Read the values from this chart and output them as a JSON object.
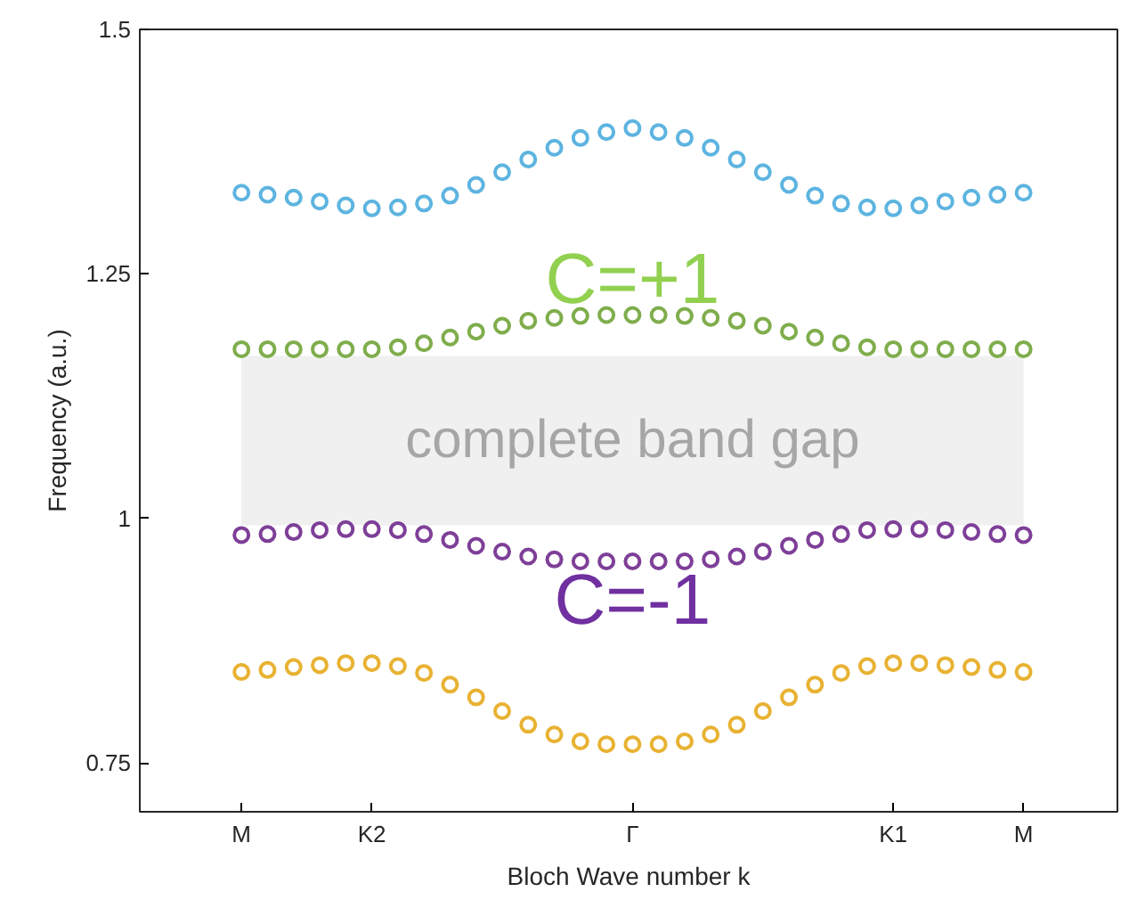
{
  "chart_data": {
    "type": "scatter",
    "xlabel": "Bloch Wave number k",
    "ylabel": "Frequency (a.u.)",
    "categories": [
      "M",
      null,
      null,
      null,
      null,
      "K2",
      null,
      null,
      null,
      null,
      null,
      null,
      null,
      null,
      null,
      "Γ",
      null,
      null,
      null,
      null,
      null,
      null,
      null,
      null,
      null,
      "K1",
      null,
      null,
      null,
      null,
      "M"
    ],
    "ylim": [
      0.7,
      1.5
    ],
    "yticks": [
      {
        "value": 0.75,
        "label": "0.75"
      },
      1,
      {
        "value": 1.25,
        "label": "1.25"
      },
      {
        "value": 1.5,
        "label": "1.5"
      }
    ],
    "marker": "circle",
    "grid": false,
    "series": [
      {
        "color": "#5db4e0",
        "values": [
          1.333,
          1.331,
          1.328,
          1.324,
          1.32,
          1.317,
          1.318,
          1.322,
          1.33,
          1.341,
          1.354,
          1.367,
          1.379,
          1.389,
          1.395,
          1.399,
          1.395,
          1.389,
          1.379,
          1.367,
          1.354,
          1.341,
          1.33,
          1.322,
          1.318,
          1.317,
          1.32,
          1.324,
          1.328,
          1.331,
          1.333
        ]
      },
      {
        "color": "#7fad4c",
        "values": [
          1.173,
          1.173,
          1.173,
          1.173,
          1.173,
          1.173,
          1.175,
          1.179,
          1.185,
          1.191,
          1.197,
          1.202,
          1.205,
          1.207,
          1.208,
          1.208,
          1.208,
          1.207,
          1.205,
          1.202,
          1.197,
          1.191,
          1.185,
          1.179,
          1.175,
          1.173,
          1.173,
          1.173,
          1.173,
          1.173,
          1.173
        ]
      },
      {
        "color": "#7e3f98",
        "values": [
          0.983,
          0.984,
          0.986,
          0.988,
          0.989,
          0.989,
          0.988,
          0.984,
          0.978,
          0.972,
          0.966,
          0.961,
          0.958,
          0.956,
          0.956,
          0.956,
          0.956,
          0.956,
          0.958,
          0.961,
          0.966,
          0.972,
          0.978,
          0.984,
          0.988,
          0.989,
          0.989,
          0.988,
          0.986,
          0.984,
          0.983
        ]
      },
      {
        "color": "#e8b232",
        "values": [
          0.843,
          0.845,
          0.848,
          0.85,
          0.852,
          0.852,
          0.849,
          0.842,
          0.83,
          0.817,
          0.803,
          0.789,
          0.779,
          0.772,
          0.769,
          0.769,
          0.769,
          0.772,
          0.779,
          0.789,
          0.803,
          0.817,
          0.83,
          0.842,
          0.849,
          0.852,
          0.852,
          0.85,
          0.848,
          0.845,
          0.843
        ]
      }
    ],
    "bands": [
      {
        "axis": "y",
        "from": 0.993,
        "to": 1.166,
        "label": "complete band gap",
        "color": "#f0f0f0"
      }
    ],
    "annotations": [
      "C=+1",
      "C=-1"
    ]
  }
}
